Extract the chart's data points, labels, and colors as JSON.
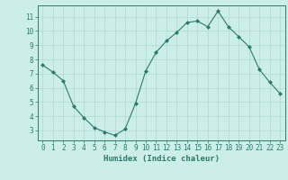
{
  "x": [
    0,
    1,
    2,
    3,
    4,
    5,
    6,
    7,
    8,
    9,
    10,
    11,
    12,
    13,
    14,
    15,
    16,
    17,
    18,
    19,
    20,
    21,
    22,
    23
  ],
  "y": [
    7.6,
    7.1,
    6.5,
    4.7,
    3.9,
    3.2,
    2.9,
    2.65,
    3.1,
    4.9,
    7.2,
    8.5,
    9.3,
    9.9,
    10.6,
    10.7,
    10.3,
    11.4,
    10.3,
    9.6,
    8.9,
    7.3,
    6.4,
    5.6
  ],
  "line_color": "#2a7b6e",
  "marker": "D",
  "marker_size": 2.0,
  "bg_color": "#cceee8",
  "grid_color": "#b0d8d0",
  "xlabel": "Humidex (Indice chaleur)",
  "xlim": [
    -0.5,
    23.5
  ],
  "ylim": [
    2.3,
    11.8
  ],
  "yticks": [
    3,
    4,
    5,
    6,
    7,
    8,
    9,
    10,
    11
  ],
  "xticks": [
    0,
    1,
    2,
    3,
    4,
    5,
    6,
    7,
    8,
    9,
    10,
    11,
    12,
    13,
    14,
    15,
    16,
    17,
    18,
    19,
    20,
    21,
    22,
    23
  ],
  "tick_color": "#2a7b6e",
  "label_color": "#2a7b6e",
  "spine_color": "#2a7b6e",
  "tick_fontsize": 5.5,
  "xlabel_fontsize": 6.5
}
